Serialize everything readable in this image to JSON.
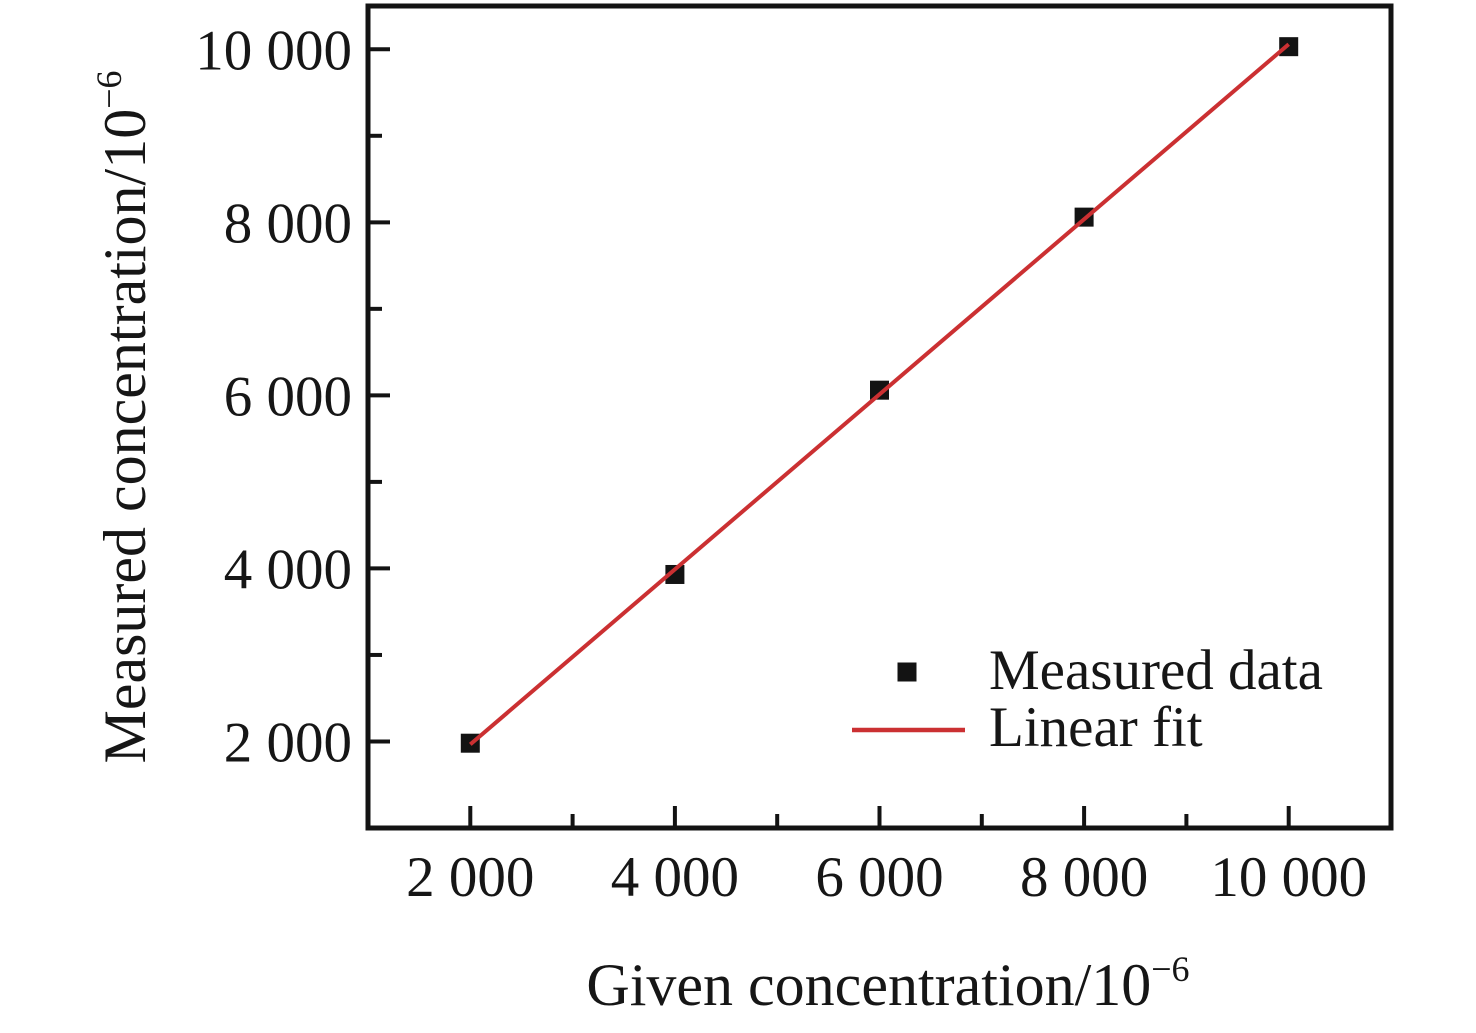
{
  "chart_data": {
    "type": "scatter",
    "title": "",
    "xlabel": {
      "text": "Given concentration/10",
      "sup": "−6"
    },
    "ylabel": {
      "text": "Measured concentration/10",
      "sup": "−6"
    },
    "x": [
      2000,
      4000,
      6000,
      8000,
      10000
    ],
    "series": [
      {
        "name": "Measured data",
        "kind": "scatter",
        "marker": "square",
        "color": "#131313",
        "values": [
          1980,
          3930,
          6060,
          8060,
          10030
        ]
      },
      {
        "name": "Linear fit",
        "kind": "line",
        "color": "#cb3032",
        "fit_x": [
          2000,
          10000
        ],
        "fit_y": [
          1966,
          10058
        ]
      }
    ],
    "xlim": [
      1000,
      11000
    ],
    "ylim": [
      1000,
      10500
    ],
    "x_major_ticks": [
      2000,
      4000,
      6000,
      8000,
      10000
    ],
    "x_minor_ticks": [
      3000,
      5000,
      7000,
      9000
    ],
    "y_major_ticks": [
      2000,
      4000,
      6000,
      8000,
      10000
    ],
    "y_minor_ticks": [
      3000,
      5000,
      7000,
      9000
    ],
    "x_tick_labels": [
      "2 000",
      "4 000",
      "6 000",
      "8 000",
      "10 000"
    ],
    "y_tick_labels": [
      "2 000",
      "4 000",
      "6 000",
      "8 000",
      "10 000"
    ],
    "grid": false,
    "frame": "full-box",
    "legend_position": "inside-lower-right",
    "legend": [
      {
        "label": "Measured data",
        "symbol": "square"
      },
      {
        "label": "Linear fit",
        "symbol": "line"
      }
    ]
  },
  "style": {
    "axis_color": "#131313",
    "text_color": "#161616",
    "marker_color": "#131313",
    "fit_line_color": "#cb3032",
    "background": "#ffffff"
  }
}
